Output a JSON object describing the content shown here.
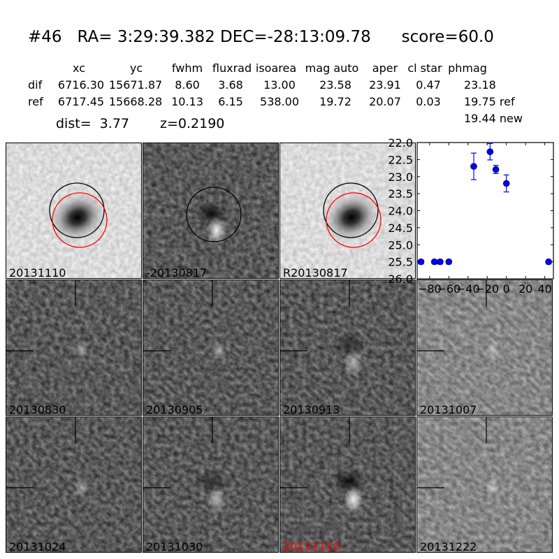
{
  "header": {
    "title": "#46   RA= 3:29:39.382 DEC=-28:13:09.78      score=60.0",
    "columns": [
      "xc",
      "yc",
      "fwhm",
      "fluxrad",
      "isoarea",
      "mag auto",
      "aper",
      "cl star",
      "phmag"
    ],
    "rows": [
      {
        "label": "dif",
        "values": [
          "6716.30",
          "15671.87",
          "8.60",
          "3.68",
          "13.00",
          "23.58",
          "23.91",
          "0.47",
          "23.18"
        ]
      },
      {
        "label": "ref",
        "values": [
          "6717.45",
          "15668.28",
          "10.13",
          "6.15",
          "538.00",
          "19.72",
          "20.07",
          "0.03",
          "19.75 ref"
        ]
      }
    ],
    "new_mag": "19.44 new",
    "dist": "dist=  3.77",
    "z": "z=0.2190"
  },
  "stamps": [
    {
      "label": "20131110",
      "kind": "galaxy",
      "label_color": "#000000"
    },
    {
      "label": "-20130817",
      "kind": "diff",
      "label_color": "#000000"
    },
    {
      "label": "R20130817",
      "kind": "galaxy",
      "label_color": "#000000"
    },
    {
      "label": "20130830",
      "kind": "noise",
      "label_color": "#000000"
    },
    {
      "label": "20130905",
      "kind": "noise",
      "label_color": "#000000"
    },
    {
      "label": "20130913",
      "kind": "noise-dipole",
      "label_color": "#000000"
    },
    {
      "label": "20131007",
      "kind": "noise-light",
      "label_color": "#000000"
    },
    {
      "label": "20131024",
      "kind": "noise",
      "label_color": "#000000"
    },
    {
      "label": "20131030",
      "kind": "noise-dipole",
      "label_color": "#000000"
    },
    {
      "label": "20131110",
      "kind": "noise-dipole-strong",
      "label_color": "#ff0000"
    },
    {
      "label": "20131222",
      "kind": "noise-light",
      "label_color": "#000000"
    }
  ],
  "colors": {
    "point": "#0000ff",
    "circle_primary": "#000000",
    "circle_secondary": "#ff0000"
  },
  "chart_data": {
    "type": "scatter",
    "xlim": [
      -93,
      49
    ],
    "ylim": [
      26.0,
      22.0
    ],
    "y_inverted": true,
    "xticks": [
      -80,
      -60,
      -40,
      -20,
      0,
      20,
      40
    ],
    "yticks": [
      "22.0",
      "22.5",
      "23.0",
      "23.5",
      "24.0",
      "24.5",
      "25.0",
      "25.5",
      "26.0"
    ],
    "grid": false,
    "detections": [
      {
        "x": -34,
        "y": 22.7,
        "err": 0.39
      },
      {
        "x": -17,
        "y": 22.27,
        "err": 0.24
      },
      {
        "x": -11,
        "y": 22.79,
        "err": 0.12
      },
      {
        "x": 0,
        "y": 23.2,
        "err": 0.25
      }
    ],
    "upper_limits": [
      {
        "x": -89,
        "y": 25.5
      },
      {
        "x": -75,
        "y": 25.5
      },
      {
        "x": -69,
        "y": 25.5
      },
      {
        "x": -60,
        "y": 25.5
      },
      {
        "x": 44,
        "y": 25.5
      }
    ]
  }
}
